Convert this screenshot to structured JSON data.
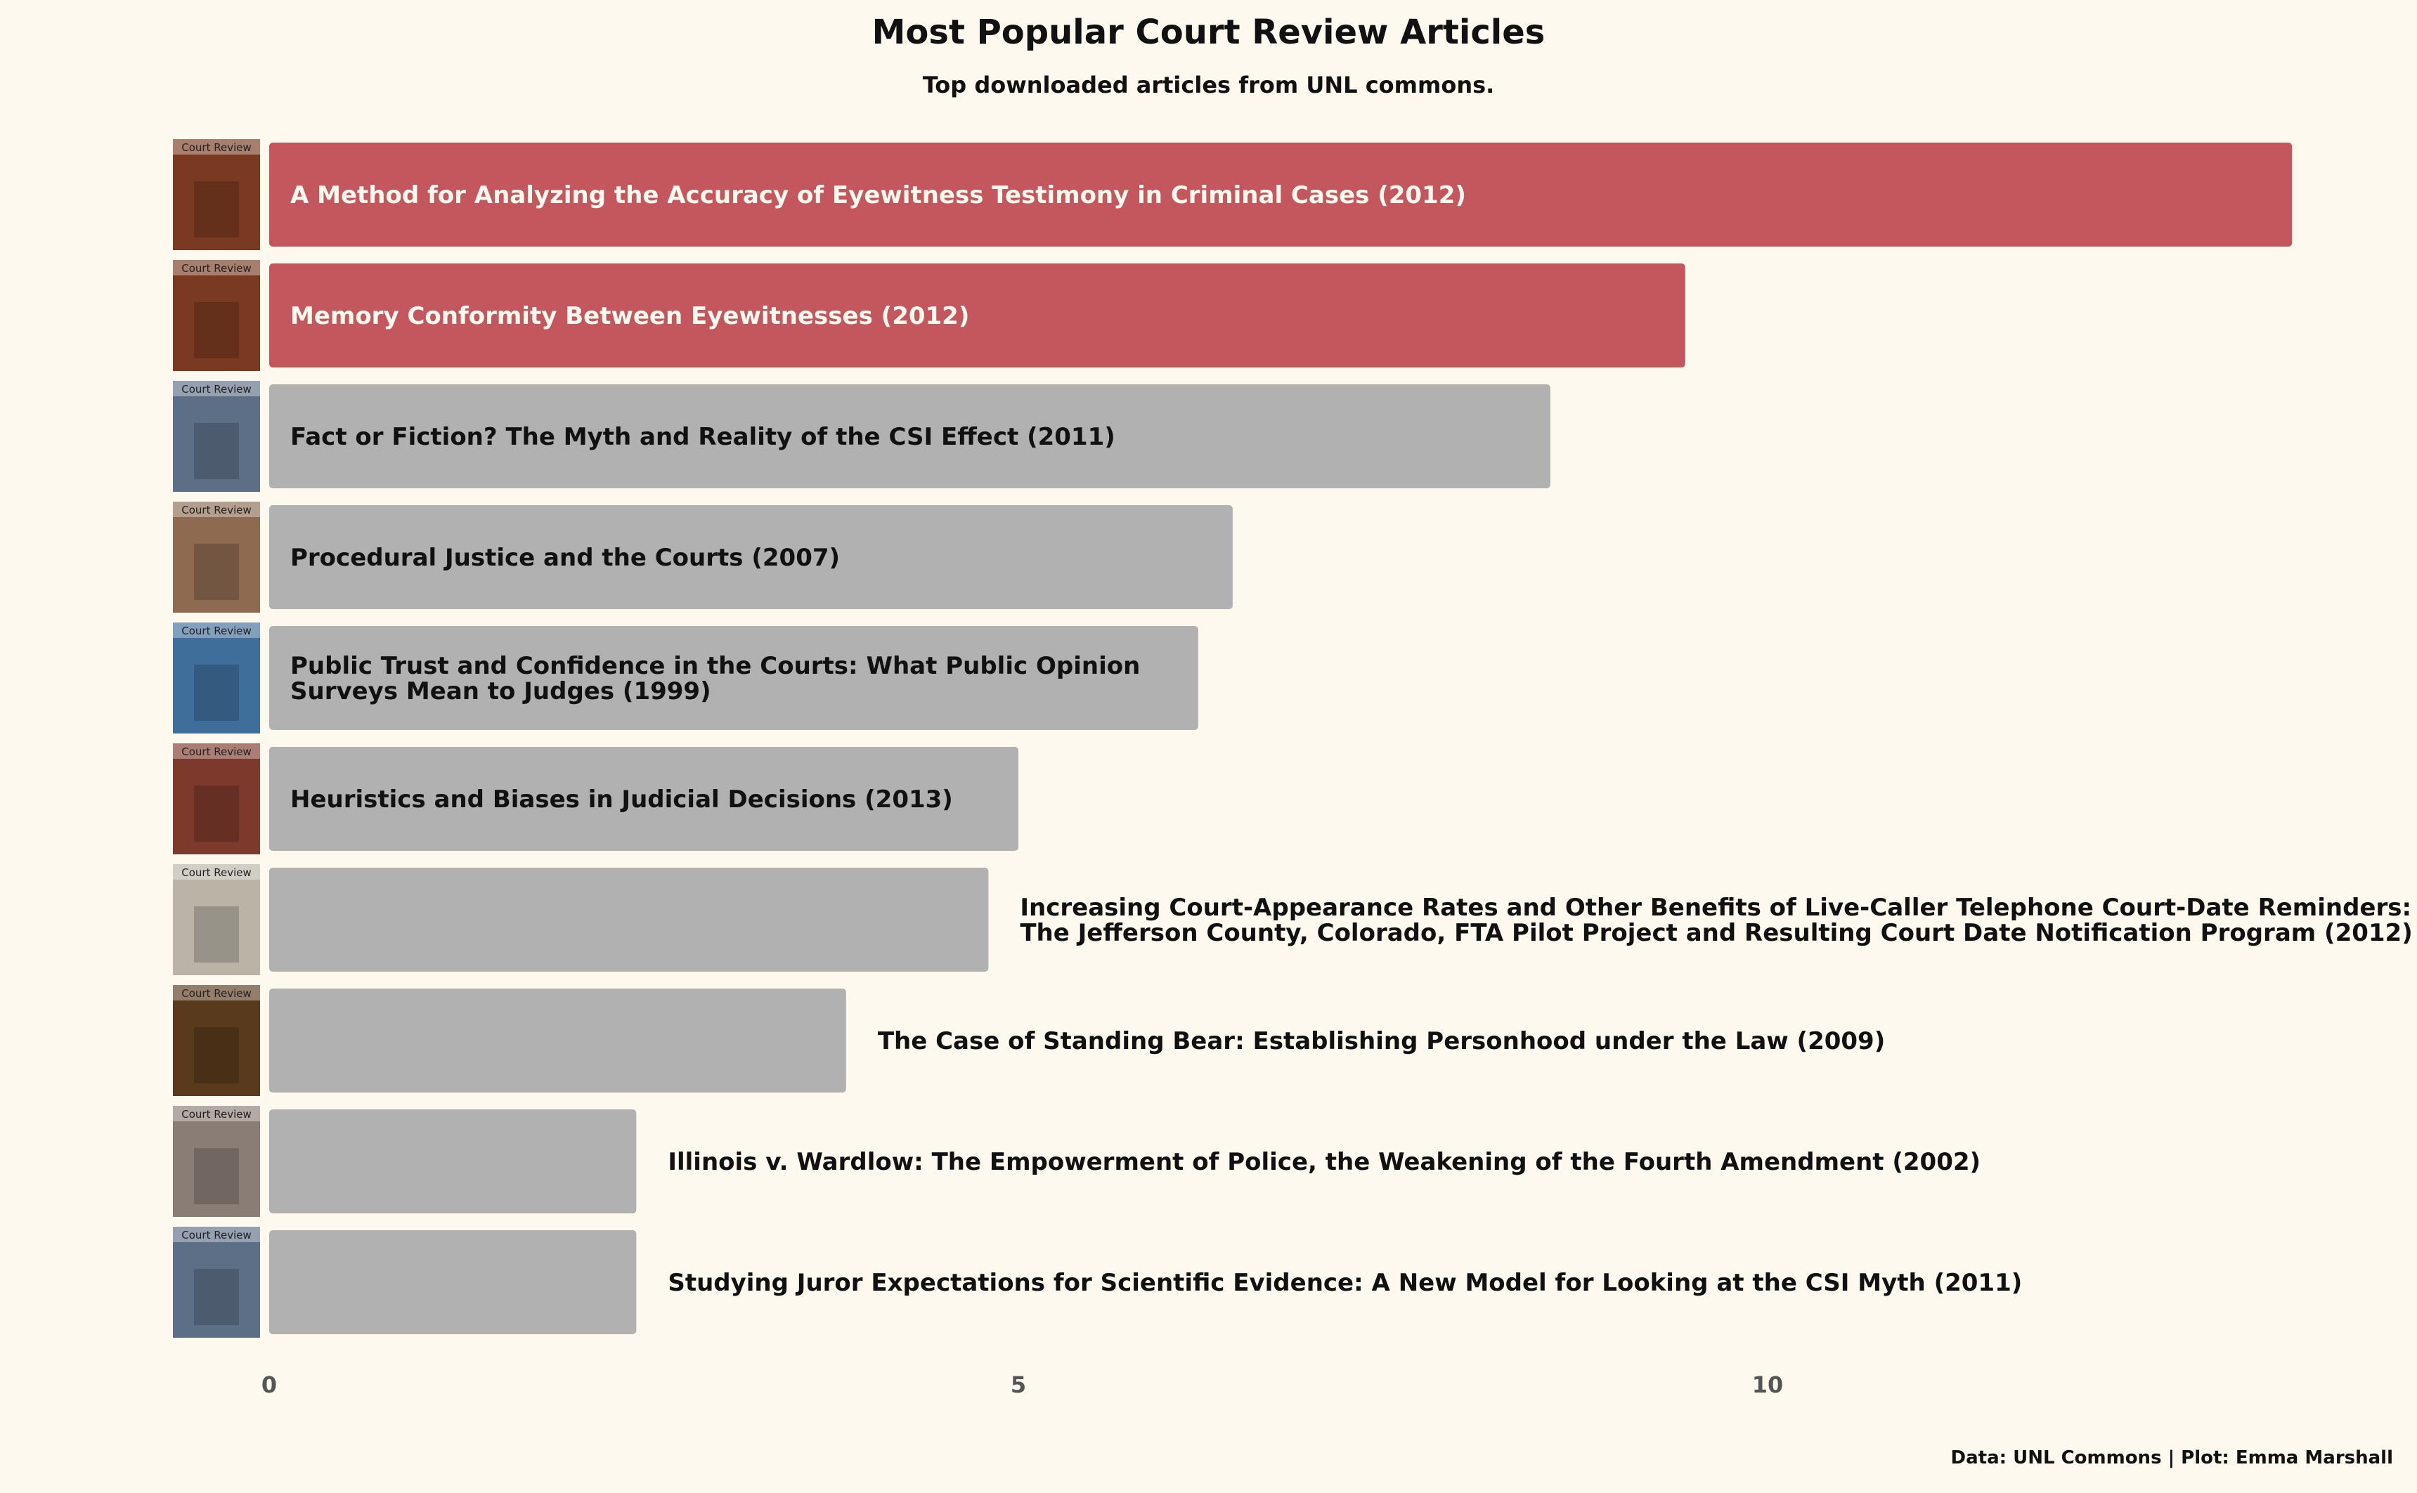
{
  "title": "Most Popular Court Review Articles",
  "subtitle": "Top downloaded articles from UNL commons.",
  "caption": "Data: UNL Commons | Plot: Emma Marshall",
  "colors": {
    "background": "#fdf9ee",
    "highlight": "#c4565d",
    "default": "#b1b1b1",
    "text_dark": "#111111",
    "text_light": "#fdf9ee",
    "tick": "#555555"
  },
  "chart_data": {
    "type": "bar",
    "orientation": "horizontal",
    "title": "Most Popular Court Review Articles",
    "subtitle": "Top downloaded articles from UNL commons.",
    "xlabel": "",
    "ylabel": "",
    "xlim": [
      0,
      13.6
    ],
    "xticks": [
      0,
      5,
      10
    ],
    "grid": false,
    "categories": [
      [
        "A Method for Analyzing the Accuracy of Eyewitness Testimony in Criminal Cases (2012)"
      ],
      [
        "Memory Conformity Between Eyewitnesses (2012)"
      ],
      [
        "Fact or Fiction? The Myth and Reality of the CSI Effect (2011)"
      ],
      [
        "Procedural Justice and the Courts (2007)"
      ],
      [
        "Public Trust and Confidence in the Courts: What Public Opinion",
        "Surveys Mean to Judges (1999)"
      ],
      [
        "Heuristics and Biases in Judicial Decisions (2013)"
      ],
      [
        "Increasing Court-Appearance Rates and Other Benefits of Live-Caller Telephone Court-Date Reminders:",
        "The Jefferson County, Colorado, FTA Pilot Project and Resulting Court Date Notification Program (2012)"
      ],
      [
        "The Case of Standing Bear: Establishing Personhood under the Law (2009)"
      ],
      [
        "Illinois v. Wardlow: The Empowerment of Police, the Weakening of the Fourth Amendment (2002)"
      ],
      [
        "Studying Juror Expectations for Scientific Evidence: A New Model for Looking at the CSI Myth (2011)"
      ]
    ],
    "values": [
      13.5,
      9.45,
      8.55,
      6.43,
      6.2,
      5.0,
      4.8,
      3.85,
      2.45,
      2.45
    ],
    "highlighted": [
      true,
      true,
      false,
      false,
      false,
      false,
      false,
      false,
      false,
      false
    ],
    "label_inside": [
      true,
      true,
      true,
      true,
      true,
      true,
      false,
      false,
      false,
      false
    ],
    "thumbnail_masthead": "Court Review",
    "thumbnail_colors": [
      "#7a3a22",
      "#7a3a22",
      "#5d6f86",
      "#8d6a50",
      "#3f6e9b",
      "#7d3a2c",
      "#b9b4a6",
      "#5a3a1c",
      "#8a7d76",
      "#5d6f86"
    ]
  }
}
